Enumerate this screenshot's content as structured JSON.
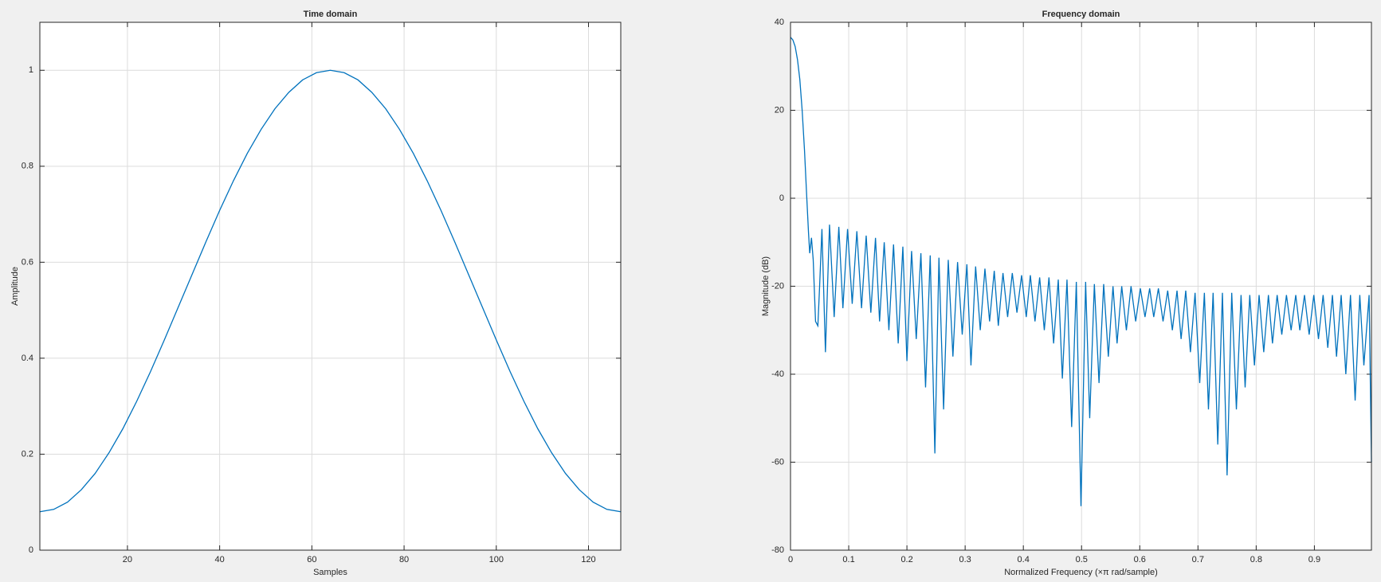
{
  "chart_data": [
    {
      "type": "line",
      "title": "Time domain",
      "xlabel": "Samples",
      "ylabel": "Amplitude",
      "color": "#0072bd",
      "grid": true,
      "xlim": [
        1,
        127
      ],
      "ylim": [
        0,
        1.1
      ],
      "xticks": [
        20,
        40,
        60,
        80,
        100,
        120
      ],
      "yticks": [
        0,
        0.2,
        0.4,
        0.6,
        0.8,
        1
      ],
      "x": [
        1,
        4,
        7,
        10,
        13,
        16,
        19,
        22,
        25,
        28,
        31,
        34,
        37,
        40,
        43,
        46,
        49,
        52,
        55,
        58,
        61,
        64,
        67,
        70,
        73,
        76,
        79,
        82,
        85,
        88,
        91,
        94,
        97,
        100,
        103,
        106,
        109,
        112,
        115,
        118,
        121,
        124,
        127
      ],
      "values": [
        0.08,
        0.085,
        0.1,
        0.126,
        0.16,
        0.203,
        0.253,
        0.31,
        0.372,
        0.438,
        0.506,
        0.574,
        0.642,
        0.708,
        0.77,
        0.827,
        0.877,
        0.92,
        0.954,
        0.98,
        0.995,
        1.0,
        0.995,
        0.98,
        0.954,
        0.92,
        0.877,
        0.827,
        0.77,
        0.708,
        0.642,
        0.574,
        0.506,
        0.438,
        0.372,
        0.31,
        0.253,
        0.203,
        0.16,
        0.126,
        0.1,
        0.085,
        0.08
      ]
    },
    {
      "type": "line",
      "title": "Frequency domain",
      "xlabel": "Normalized Frequency  (×π rad/sample)",
      "ylabel": "Magnitude (dB)",
      "color": "#0072bd",
      "grid": true,
      "xlim": [
        0,
        0.998
      ],
      "ylim": [
        -80,
        40
      ],
      "xticks": [
        0,
        0.1,
        0.2,
        0.3,
        0.4,
        0.5,
        0.6,
        0.7,
        0.8,
        0.9
      ],
      "yticks": [
        -80,
        -60,
        -40,
        -20,
        0,
        20,
        40
      ],
      "x": [
        0,
        0.004,
        0.008,
        0.012,
        0.016,
        0.02,
        0.024,
        0.028,
        0.031,
        0.033,
        0.036,
        0.039,
        0.043,
        0.047,
        0.05,
        0.054,
        0.06,
        0.067,
        0.075,
        0.083,
        0.09,
        0.098,
        0.106,
        0.114,
        0.122,
        0.13,
        0.138,
        0.146,
        0.153,
        0.161,
        0.169,
        0.177,
        0.185,
        0.193,
        0.2,
        0.208,
        0.216,
        0.224,
        0.232,
        0.24,
        0.248,
        0.255,
        0.263,
        0.271,
        0.279,
        0.287,
        0.295,
        0.303,
        0.31,
        0.318,
        0.326,
        0.334,
        0.342,
        0.35,
        0.357,
        0.365,
        0.373,
        0.381,
        0.389,
        0.397,
        0.405,
        0.412,
        0.42,
        0.428,
        0.436,
        0.444,
        0.452,
        0.46,
        0.467,
        0.475,
        0.483,
        0.491,
        0.499,
        0.507,
        0.514,
        0.522,
        0.53,
        0.538,
        0.546,
        0.554,
        0.561,
        0.569,
        0.577,
        0.585,
        0.593,
        0.601,
        0.609,
        0.617,
        0.624,
        0.632,
        0.64,
        0.648,
        0.656,
        0.664,
        0.671,
        0.679,
        0.687,
        0.695,
        0.703,
        0.711,
        0.718,
        0.726,
        0.734,
        0.742,
        0.75,
        0.758,
        0.766,
        0.774,
        0.781,
        0.789,
        0.797,
        0.805,
        0.813,
        0.821,
        0.828,
        0.836,
        0.844,
        0.852,
        0.86,
        0.868,
        0.875,
        0.883,
        0.891,
        0.899,
        0.907,
        0.915,
        0.923,
        0.931,
        0.938,
        0.946,
        0.954,
        0.962,
        0.97,
        0.978,
        0.985,
        0.994,
        0.998
      ],
      "values": [
        36.6,
        36,
        34.5,
        31.5,
        27,
        20,
        11,
        0,
        -8,
        -12.5,
        -9,
        -14,
        -28,
        -29,
        -20,
        -7,
        -35,
        -6,
        -27,
        -6.5,
        -25,
        -7,
        -24,
        -7.5,
        -25,
        -8.5,
        -26,
        -9,
        -28,
        -10,
        -30,
        -10.5,
        -33,
        -11,
        -37,
        -12,
        -32,
        -12.5,
        -43,
        -13,
        -58,
        -13.5,
        -48,
        -14,
        -36,
        -14.5,
        -31,
        -15,
        -38,
        -15.5,
        -30,
        -16,
        -28,
        -16.5,
        -29,
        -17,
        -27,
        -17,
        -26,
        -17.5,
        -27,
        -17.5,
        -28,
        -18,
        -30,
        -18,
        -33,
        -18.5,
        -41,
        -18.5,
        -52,
        -19,
        -70,
        -19,
        -50,
        -19.5,
        -42,
        -19.5,
        -36,
        -20,
        -33,
        -20,
        -30,
        -20,
        -28,
        -20.5,
        -27,
        -20.5,
        -27,
        -20.5,
        -28,
        -21,
        -30,
        -21,
        -32,
        -21,
        -35,
        -21.5,
        -42,
        -21.5,
        -48,
        -21.5,
        -56,
        -21.5,
        -63,
        -21.5,
        -48,
        -22,
        -43,
        -22,
        -38,
        -22,
        -35,
        -22,
        -33,
        -22,
        -31,
        -22,
        -30,
        -22,
        -30,
        -22,
        -31,
        -22,
        -32,
        -22,
        -34,
        -22,
        -36,
        -22,
        -40,
        -22,
        -46,
        -22,
        -38,
        -22,
        -60
      ]
    }
  ]
}
